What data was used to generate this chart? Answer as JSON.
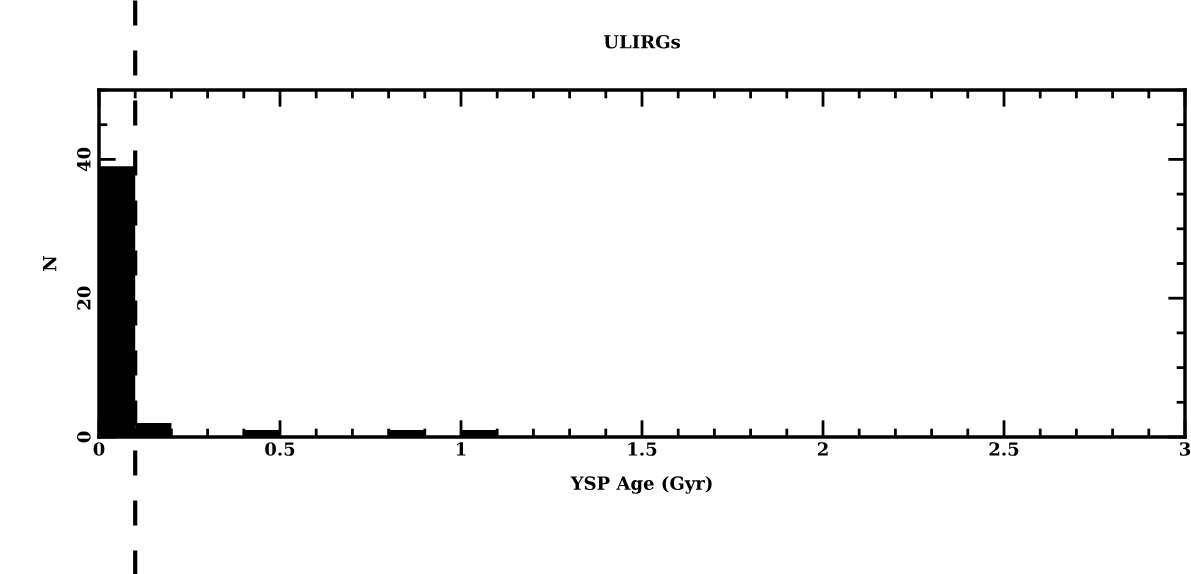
{
  "chart_data": {
    "type": "histogram",
    "title": "ULIRGs",
    "xlabel": "YSP Age (Gyr)",
    "ylabel": "N",
    "bins": [
      0,
      0.1,
      0.2,
      0.3,
      0.4,
      0.5,
      0.6,
      0.7,
      0.8,
      0.9,
      1.0,
      1.1
    ],
    "values": [
      39,
      2,
      0,
      0,
      1,
      0,
      0,
      0,
      1,
      0,
      1
    ],
    "color": "#000000",
    "xlim": [
      0,
      3
    ],
    "xticks": [
      0,
      0.5,
      1,
      1.5,
      2,
      2.5,
      3
    ],
    "ylim": [
      0,
      50
    ],
    "yticks": [
      0,
      20,
      40
    ],
    "ref_lines": [
      {
        "axis": "x",
        "value": 0.1,
        "line_style": "dashed",
        "color": "#000000"
      }
    ],
    "grid": false,
    "legend": false
  }
}
